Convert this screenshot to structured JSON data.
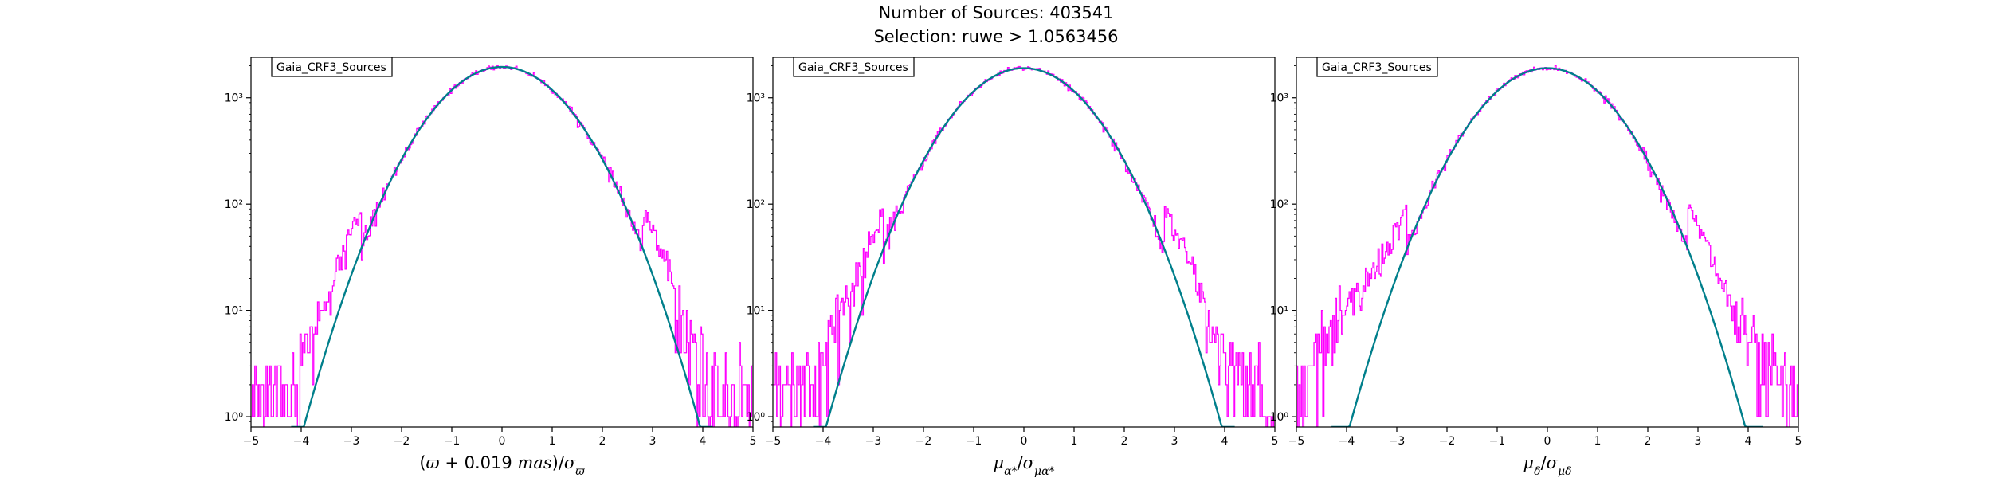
{
  "figure": {
    "title_line1": "Number of Sources: 403541",
    "title_line2": "Selection: ruwe > 1.0563456"
  },
  "colors": {
    "histogram": "#ff00ff",
    "fit": "#007f8b",
    "axes": "#000000",
    "legend_border": "#000000"
  },
  "chart_data": [
    {
      "type": "line",
      "legend": "Gaia_CRF3_Sources",
      "legend_placement": "upper-left",
      "xlabel": "(ϖ + 0.019 mas)/σϖ",
      "xlabel_parts": [
        {
          "t": "(",
          "it": false
        },
        {
          "t": "ϖ",
          "it": true
        },
        {
          "t": " + 0.019 ",
          "it": false
        },
        {
          "t": "mas",
          "it": true
        },
        {
          "t": ")/",
          "it": false
        },
        {
          "t": "σ",
          "it": true
        },
        {
          "t": "ϖ",
          "it": true,
          "sub": true
        }
      ],
      "x_ticks": [
        "−5",
        "−4",
        "−3",
        "−2",
        "−1",
        "0",
        "1",
        "2",
        "3",
        "4",
        "5"
      ],
      "y_ticks": [
        "10⁰",
        "10¹",
        "10²",
        "10³"
      ],
      "y_scale": "log",
      "xlim": [
        -5,
        5
      ],
      "ylim": [
        0.8,
        2400
      ],
      "grid": false,
      "series": [
        {
          "kind": "gaussian-fit",
          "peak": 1950,
          "sigma": 1.0,
          "x_range": [
            -4.2,
            4.2
          ]
        },
        {
          "kind": "histogram-step",
          "bin_width": 0.025,
          "tail_profile": [
            [
              -5.0,
              1.0
            ],
            [
              -4.8,
              1.3
            ],
            [
              -4.6,
              1.6
            ],
            [
              -4.4,
              2.0
            ],
            [
              -4.2,
              2.7
            ],
            [
              -4.0,
              3.6
            ],
            [
              -3.8,
              5.5
            ],
            [
              -3.6,
              10
            ],
            [
              -3.4,
              18
            ],
            [
              -3.2,
              32
            ],
            [
              -3.0,
              55
            ],
            [
              -2.8,
              88
            ]
          ],
          "tail_profile_right": [
            [
              2.8,
              88
            ],
            [
              3.0,
              55
            ],
            [
              3.2,
              32
            ],
            [
              3.4,
              18
            ],
            [
              3.6,
              9
            ],
            [
              3.8,
              5
            ],
            [
              4.0,
              2.5
            ],
            [
              4.2,
              1.8
            ],
            [
              4.4,
              1.5
            ],
            [
              4.6,
              1.3
            ],
            [
              4.8,
              1.2
            ],
            [
              5.0,
              1.0
            ]
          ]
        }
      ]
    },
    {
      "type": "line",
      "legend": "Gaia_CRF3_Sources",
      "legend_placement": "upper-left",
      "xlabel": "μα*/σμα*",
      "xlabel_parts": [
        {
          "t": "μ",
          "it": true
        },
        {
          "t": "α*",
          "it": true,
          "sub": true
        },
        {
          "t": "/",
          "it": false
        },
        {
          "t": "σ",
          "it": true
        },
        {
          "t": "μα*",
          "it": true,
          "sub": true
        }
      ],
      "x_ticks": [
        "−5",
        "−4",
        "−3",
        "−2",
        "−1",
        "0",
        "1",
        "2",
        "3",
        "4",
        "5"
      ],
      "y_ticks": [
        "10⁰",
        "10¹",
        "10²",
        "10³"
      ],
      "y_scale": "log",
      "xlim": [
        -5,
        5
      ],
      "ylim": [
        0.8,
        2400
      ],
      "grid": false,
      "series": [
        {
          "kind": "gaussian-fit",
          "peak": 1900,
          "sigma": 1.0,
          "x_range": [
            -4.2,
            4.2
          ]
        },
        {
          "kind": "histogram-step",
          "bin_width": 0.025,
          "tail_profile": [
            [
              -5.0,
              1.0
            ],
            [
              -4.8,
              1.4
            ],
            [
              -4.6,
              1.8
            ],
            [
              -4.4,
              2.3
            ],
            [
              -4.2,
              3.0
            ],
            [
              -4.0,
              4.0
            ],
            [
              -3.8,
              6.0
            ],
            [
              -3.6,
              10
            ],
            [
              -3.4,
              18
            ],
            [
              -3.2,
              30
            ],
            [
              -3.0,
              52
            ],
            [
              -2.8,
              85
            ]
          ],
          "tail_profile_right": [
            [
              2.8,
              90
            ],
            [
              3.0,
              58
            ],
            [
              3.2,
              36
            ],
            [
              3.4,
              20
            ],
            [
              3.6,
              11
            ],
            [
              3.8,
              6
            ],
            [
              4.0,
              3.5
            ],
            [
              4.2,
              2.5
            ],
            [
              4.4,
              2.0
            ],
            [
              4.6,
              1.5
            ],
            [
              4.8,
              1.2
            ],
            [
              5.0,
              1.0
            ]
          ]
        }
      ]
    },
    {
      "type": "line",
      "legend": "Gaia_CRF3_Sources",
      "legend_placement": "upper-left",
      "xlabel": "μδ/σμδ",
      "xlabel_parts": [
        {
          "t": "μ",
          "it": true
        },
        {
          "t": "δ",
          "it": true,
          "sub": true
        },
        {
          "t": "/",
          "it": false
        },
        {
          "t": "σ",
          "it": true
        },
        {
          "t": "μδ",
          "it": true,
          "sub": true
        }
      ],
      "x_ticks": [
        "−5",
        "−4",
        "−3",
        "−2",
        "−1",
        "0",
        "1",
        "2",
        "3",
        "4",
        "5"
      ],
      "y_ticks": [
        "10⁰",
        "10¹",
        "10²",
        "10³"
      ],
      "y_scale": "log",
      "xlim": [
        -5,
        5
      ],
      "ylim": [
        0.8,
        2400
      ],
      "grid": false,
      "series": [
        {
          "kind": "gaussian-fit",
          "peak": 1900,
          "sigma": 1.0,
          "x_range": [
            -4.3,
            4.3
          ]
        },
        {
          "kind": "histogram-step",
          "bin_width": 0.025,
          "tail_profile": [
            [
              -5.0,
              1.5
            ],
            [
              -4.8,
              2.5
            ],
            [
              -4.6,
              3.5
            ],
            [
              -4.4,
              5.0
            ],
            [
              -4.2,
              6.5
            ],
            [
              -4.0,
              9
            ],
            [
              -3.8,
              13
            ],
            [
              -3.6,
              18
            ],
            [
              -3.4,
              26
            ],
            [
              -3.2,
              38
            ],
            [
              -3.0,
              60
            ],
            [
              -2.8,
              95
            ]
          ],
          "tail_profile_right": [
            [
              2.8,
              95
            ],
            [
              3.0,
              62
            ],
            [
              3.2,
              38
            ],
            [
              3.4,
              22
            ],
            [
              3.6,
              13
            ],
            [
              3.8,
              8
            ],
            [
              4.0,
              5
            ],
            [
              4.2,
              3.5
            ],
            [
              4.4,
              2.5
            ],
            [
              4.6,
              1.8
            ],
            [
              4.8,
              1.4
            ],
            [
              5.0,
              1.1
            ]
          ]
        }
      ]
    }
  ]
}
